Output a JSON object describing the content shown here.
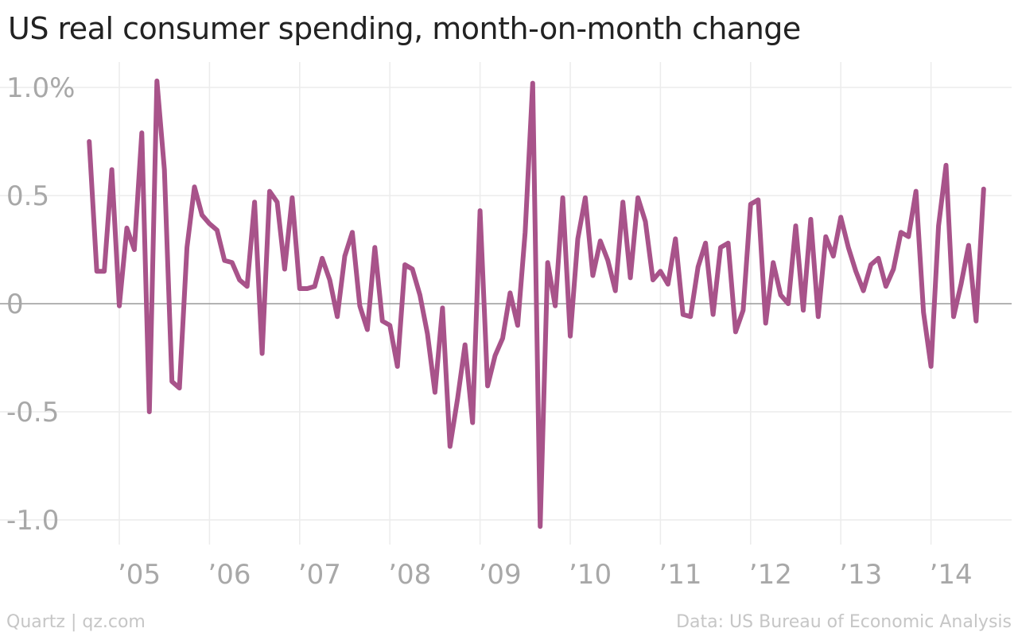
{
  "chart_data": {
    "type": "line",
    "title": "US real consumer spending, month-on-month change",
    "xlabel": "",
    "ylabel": "",
    "ylim": [
      -1.1,
      1.1
    ],
    "yticks": [
      {
        "value": 1.0,
        "label": "1.0%"
      },
      {
        "value": 0.5,
        "label": "0.5"
      },
      {
        "value": 0,
        "label": "0"
      },
      {
        "value": -0.5,
        "label": "-0.5"
      },
      {
        "value": -1.0,
        "label": "-1.0"
      }
    ],
    "xticks": [
      {
        "value": 2005,
        "label": "’05"
      },
      {
        "value": 2006,
        "label": "’06"
      },
      {
        "value": 2007,
        "label": "’07"
      },
      {
        "value": 2008,
        "label": "’08"
      },
      {
        "value": 2009,
        "label": "’09"
      },
      {
        "value": 2010,
        "label": "’10"
      },
      {
        "value": 2011,
        "label": "’11"
      },
      {
        "value": 2012,
        "label": "’12"
      },
      {
        "value": 2013,
        "label": "’13"
      },
      {
        "value": 2014,
        "label": "’14"
      }
    ],
    "grid": true,
    "color": "#a8538a",
    "start": "2004-09",
    "values": [
      0.75,
      0.15,
      0.15,
      0.62,
      -0.01,
      0.35,
      0.25,
      0.79,
      -0.5,
      1.03,
      0.62,
      -0.36,
      -0.39,
      0.26,
      0.54,
      0.41,
      0.37,
      0.34,
      0.2,
      0.19,
      0.11,
      0.08,
      0.47,
      -0.23,
      0.52,
      0.47,
      0.16,
      0.49,
      0.07,
      0.07,
      0.08,
      0.21,
      0.11,
      -0.06,
      0.22,
      0.33,
      -0.01,
      -0.12,
      0.26,
      -0.08,
      -0.1,
      -0.29,
      0.18,
      0.16,
      0.04,
      -0.14,
      -0.41,
      -0.02,
      -0.66,
      -0.44,
      -0.19,
      -0.55,
      0.43,
      -0.38,
      -0.24,
      -0.16,
      0.05,
      -0.1,
      0.33,
      1.02,
      -1.03,
      0.19,
      -0.01,
      0.49,
      -0.15,
      0.3,
      0.49,
      0.13,
      0.29,
      0.2,
      0.06,
      0.47,
      0.12,
      0.49,
      0.38,
      0.11,
      0.15,
      0.09,
      0.3,
      -0.05,
      -0.06,
      0.17,
      0.28,
      -0.05,
      0.26,
      0.28,
      -0.13,
      -0.03,
      0.46,
      0.48,
      -0.09,
      0.19,
      0.04,
      0.0,
      0.36,
      -0.03,
      0.39,
      -0.06,
      0.31,
      0.22,
      0.4,
      0.26,
      0.15,
      0.06,
      0.18,
      0.21,
      0.08,
      0.16,
      0.33,
      0.31,
      0.52,
      -0.04,
      -0.29,
      0.36,
      0.64,
      -0.06,
      0.09,
      0.27,
      -0.08,
      0.53
    ]
  },
  "footer": {
    "source_left": "Quartz | qz.com",
    "source_right": "Data: US Bureau of Economic Analysis"
  }
}
